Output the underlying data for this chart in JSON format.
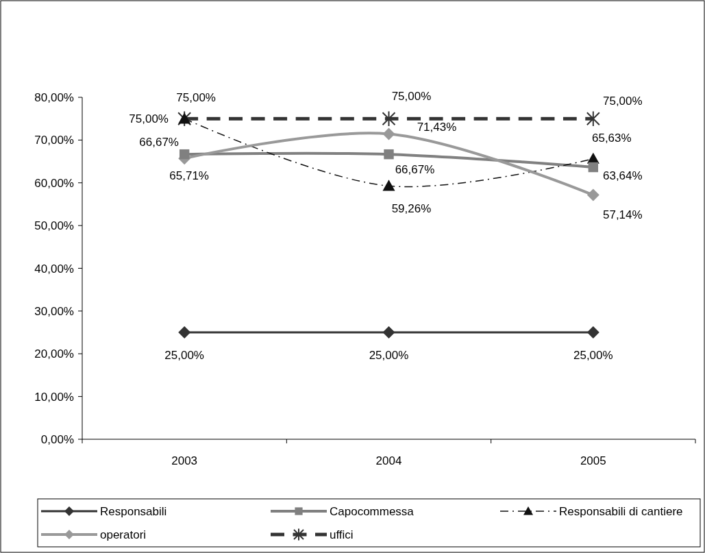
{
  "chart_data": {
    "type": "line",
    "categories": [
      "2003",
      "2004",
      "2005"
    ],
    "ylim": [
      0,
      80
    ],
    "yticks": [
      {
        "value": 0,
        "label": "0,00%"
      },
      {
        "value": 10,
        "label": "10,00%"
      },
      {
        "value": 20,
        "label": "20,00%"
      },
      {
        "value": 30,
        "label": "30,00%"
      },
      {
        "value": 40,
        "label": "40,00%"
      },
      {
        "value": 50,
        "label": "50,00%"
      },
      {
        "value": 60,
        "label": "60,00%"
      },
      {
        "value": 70,
        "label": "70,00%"
      },
      {
        "value": 80,
        "label": "80,00%"
      }
    ],
    "legend": "bottom",
    "grid": false,
    "series": [
      {
        "name": "Responsabili",
        "color": "#333333",
        "values": [
          25,
          25,
          25
        ],
        "marker": "diamond",
        "line_style": "solid",
        "value_labels": [
          "25,00%",
          "25,00%",
          "25,00%"
        ]
      },
      {
        "name": "Capocommessa",
        "color": "#808080",
        "values": [
          66.67,
          66.67,
          63.64
        ],
        "marker": "square",
        "line_style": "solid",
        "value_labels": [
          "66,67%",
          "66,67%",
          "63,64%"
        ]
      },
      {
        "name": "Responsabili di cantiere",
        "color": "#111111",
        "values": [
          75,
          59.26,
          65.63
        ],
        "marker": "triangle",
        "line_style": "dashed",
        "value_labels": [
          "75,00%",
          "59,26%",
          "65,63%"
        ]
      },
      {
        "name": "operatori",
        "color": "#999999",
        "values": [
          65.71,
          71.43,
          57.14
        ],
        "marker": "diamond",
        "line_style": "solid",
        "value_labels": [
          "65,71%",
          "71,43%",
          "57,14%"
        ]
      },
      {
        "name": "uffici",
        "color": "#333333",
        "values": [
          75,
          75,
          75
        ],
        "marker": "cross",
        "line_style": "dashed",
        "value_labels": [
          "75,00%",
          "75,00%",
          "75,00%"
        ]
      }
    ]
  }
}
